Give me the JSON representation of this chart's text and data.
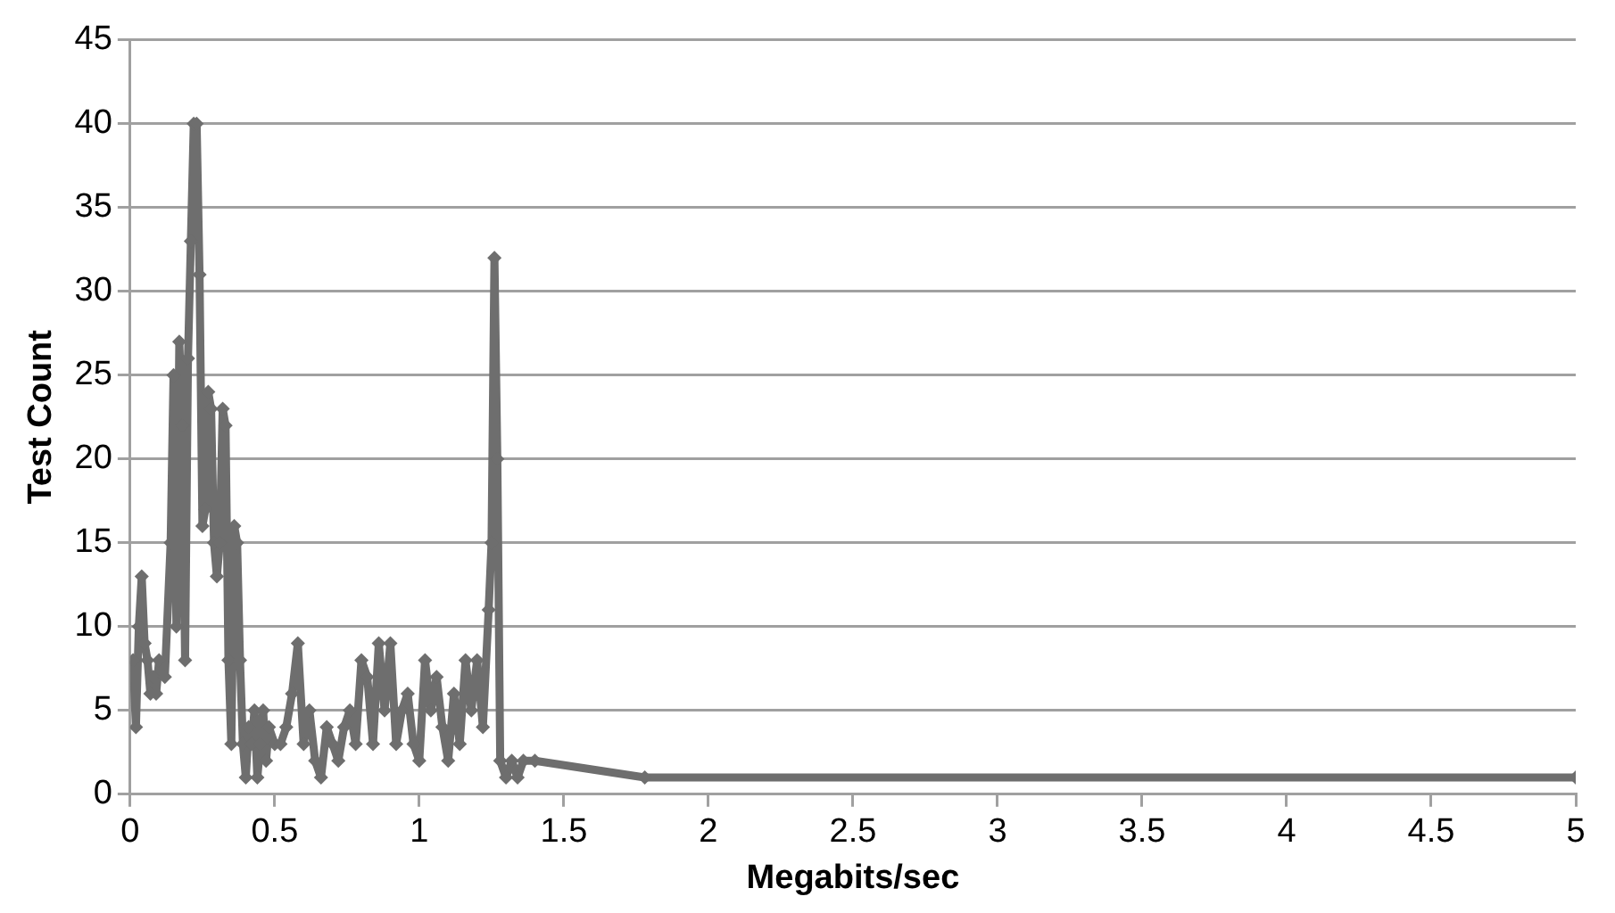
{
  "chart_data": {
    "type": "line",
    "xlabel": "Megabits/sec",
    "ylabel": "Test Count",
    "x": [
      0.01,
      0.02,
      0.03,
      0.04,
      0.05,
      0.06,
      0.07,
      0.08,
      0.09,
      0.1,
      0.12,
      0.14,
      0.15,
      0.16,
      0.17,
      0.18,
      0.19,
      0.2,
      0.21,
      0.22,
      0.23,
      0.24,
      0.25,
      0.26,
      0.27,
      0.28,
      0.29,
      0.3,
      0.31,
      0.32,
      0.33,
      0.34,
      0.35,
      0.36,
      0.37,
      0.38,
      0.39,
      0.4,
      0.41,
      0.42,
      0.43,
      0.44,
      0.45,
      0.46,
      0.47,
      0.48,
      0.5,
      0.52,
      0.54,
      0.56,
      0.58,
      0.6,
      0.62,
      0.64,
      0.66,
      0.68,
      0.7,
      0.72,
      0.74,
      0.76,
      0.78,
      0.8,
      0.82,
      0.84,
      0.86,
      0.88,
      0.9,
      0.92,
      0.94,
      0.96,
      0.98,
      1.0,
      1.02,
      1.04,
      1.06,
      1.08,
      1.1,
      1.12,
      1.14,
      1.16,
      1.18,
      1.2,
      1.22,
      1.24,
      1.25,
      1.26,
      1.27,
      1.28,
      1.3,
      1.32,
      1.34,
      1.36,
      1.4,
      1.78,
      5.0
    ],
    "series": [
      {
        "color": "#6e6e6e",
        "values": [
          8,
          4,
          10,
          13,
          9,
          8,
          6,
          7,
          6,
          8,
          7,
          15,
          25,
          10,
          27,
          22,
          8,
          26,
          33,
          40,
          40,
          31,
          16,
          17,
          24,
          23,
          15,
          13,
          15,
          23,
          22,
          8,
          3,
          16,
          15,
          8,
          3,
          1,
          4,
          3,
          5,
          1,
          3,
          5,
          2,
          4,
          3,
          3,
          4,
          6,
          9,
          3,
          5,
          2,
          1,
          4,
          3,
          2,
          4,
          5,
          3,
          8,
          7,
          3,
          9,
          5,
          9,
          3,
          5,
          6,
          3,
          2,
          8,
          5,
          7,
          4,
          2,
          6,
          3,
          8,
          5,
          8,
          4,
          11,
          15,
          32,
          20,
          2,
          1,
          2,
          1,
          2,
          2,
          1,
          1
        ]
      }
    ],
    "xlim": [
      0,
      5
    ],
    "xticks": [
      0,
      0.5,
      1,
      1.5,
      2,
      2.5,
      3,
      3.5,
      4,
      4.5,
      5
    ],
    "ylim": [
      0,
      45
    ],
    "yticks": [
      0,
      5,
      10,
      15,
      20,
      25,
      30,
      35,
      40,
      45
    ],
    "grid": "y",
    "legend": false,
    "marker": "diamond",
    "line_style": "solid"
  }
}
